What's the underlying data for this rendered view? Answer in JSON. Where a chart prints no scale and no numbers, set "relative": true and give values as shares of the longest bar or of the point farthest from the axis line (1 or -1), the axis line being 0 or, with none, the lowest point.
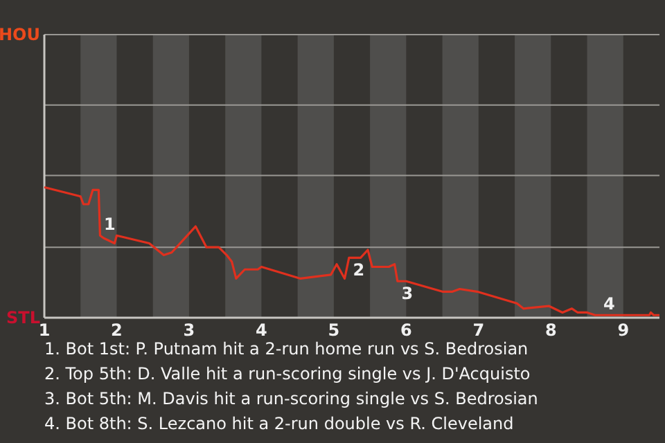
{
  "chart_data": {
    "type": "line",
    "relative": true,
    "xlim": [
      1,
      9.5
    ],
    "xticks": [
      1,
      2,
      3,
      4,
      5,
      6,
      7,
      8,
      9
    ],
    "marker": "none",
    "line_style": "solid",
    "ref_lines": [
      {
        "axis": "y",
        "value": 0.54,
        "color": "#9a9894"
      },
      {
        "axis": "y",
        "value": 1.09,
        "color": "#9a9894"
      },
      {
        "axis": "y",
        "value": 1.63,
        "color": "#9a9894"
      }
    ],
    "bands": [
      {
        "axis": "x",
        "from": 1.5,
        "to": 2,
        "color": "#4f4e4c"
      },
      {
        "axis": "x",
        "from": 2.5,
        "to": 3,
        "color": "#4f4e4c"
      },
      {
        "axis": "x",
        "from": 3.5,
        "to": 4,
        "color": "#4f4e4c"
      },
      {
        "axis": "x",
        "from": 4.5,
        "to": 5,
        "color": "#4f4e4c"
      },
      {
        "axis": "x",
        "from": 5.5,
        "to": 6,
        "color": "#4f4e4c"
      },
      {
        "axis": "x",
        "from": 6.5,
        "to": 7,
        "color": "#4f4e4c"
      },
      {
        "axis": "x",
        "from": 7.5,
        "to": 8,
        "color": "#4f4e4c"
      },
      {
        "axis": "x",
        "from": 8.5,
        "to": 9,
        "color": "#4f4e4c"
      }
    ],
    "series": [
      {
        "color": "#e0301e",
        "x": [
          1.0,
          1.5,
          1.54,
          1.61,
          1.67,
          1.75,
          1.77,
          1.82,
          1.97,
          2.0,
          2.45,
          2.65,
          2.76,
          3.09,
          3.24,
          3.41,
          3.52,
          3.59,
          3.65,
          3.77,
          3.95,
          4.0,
          4.54,
          4.96,
          5.04,
          5.15,
          5.21,
          5.37,
          5.47,
          5.53,
          5.61,
          5.76,
          5.84,
          5.88,
          6.0,
          6.5,
          6.64,
          6.74,
          6.98,
          7.53,
          7.62,
          7.97,
          8.16,
          8.29,
          8.37,
          8.5,
          8.61,
          8.67,
          8.99,
          9.36,
          9.38,
          9.42,
          9.5
        ],
        "values": [
          1,
          0.93,
          0.87,
          0.87,
          0.98,
          0.98,
          0.63,
          0.61,
          0.57,
          0.63,
          0.57,
          0.48,
          0.5,
          0.7,
          0.54,
          0.54,
          0.48,
          0.43,
          0.3,
          0.37,
          0.37,
          0.39,
          0.3,
          0.33,
          0.41,
          0.3,
          0.46,
          0.46,
          0.52,
          0.39,
          0.39,
          0.39,
          0.41,
          0.28,
          0.28,
          0.2,
          0.2,
          0.22,
          0.2,
          0.11,
          0.07,
          0.09,
          0.04,
          0.07,
          0.04,
          0.04,
          0.02,
          0.02,
          0.02,
          0.02,
          0.04,
          0.02,
          0.02
        ]
      }
    ],
    "annotations": [
      {
        "text": "HOU"
      },
      {
        "text": "STL"
      },
      {
        "text": "1",
        "x": 1.77,
        "y": 0.63
      },
      {
        "text": "2",
        "x": 5.21,
        "y": 0.46
      },
      {
        "text": "3",
        "x": 5.88,
        "y": 0.28
      },
      {
        "text": "4",
        "x": 8.67,
        "y": 0.02
      },
      "1. Bot 1st: P. Putnam hit a 2-run home run vs S. Bedrosian",
      "2. Top 5th: D. Valle hit a run-scoring single vs J. D'Acquisto",
      "3. Bot 5th: M. Davis hit a run-scoring single vs S. Bedrosian",
      "4. Bot 8th: S. Lezcano hit a 2-run double vs R. Cleveland"
    ]
  }
}
